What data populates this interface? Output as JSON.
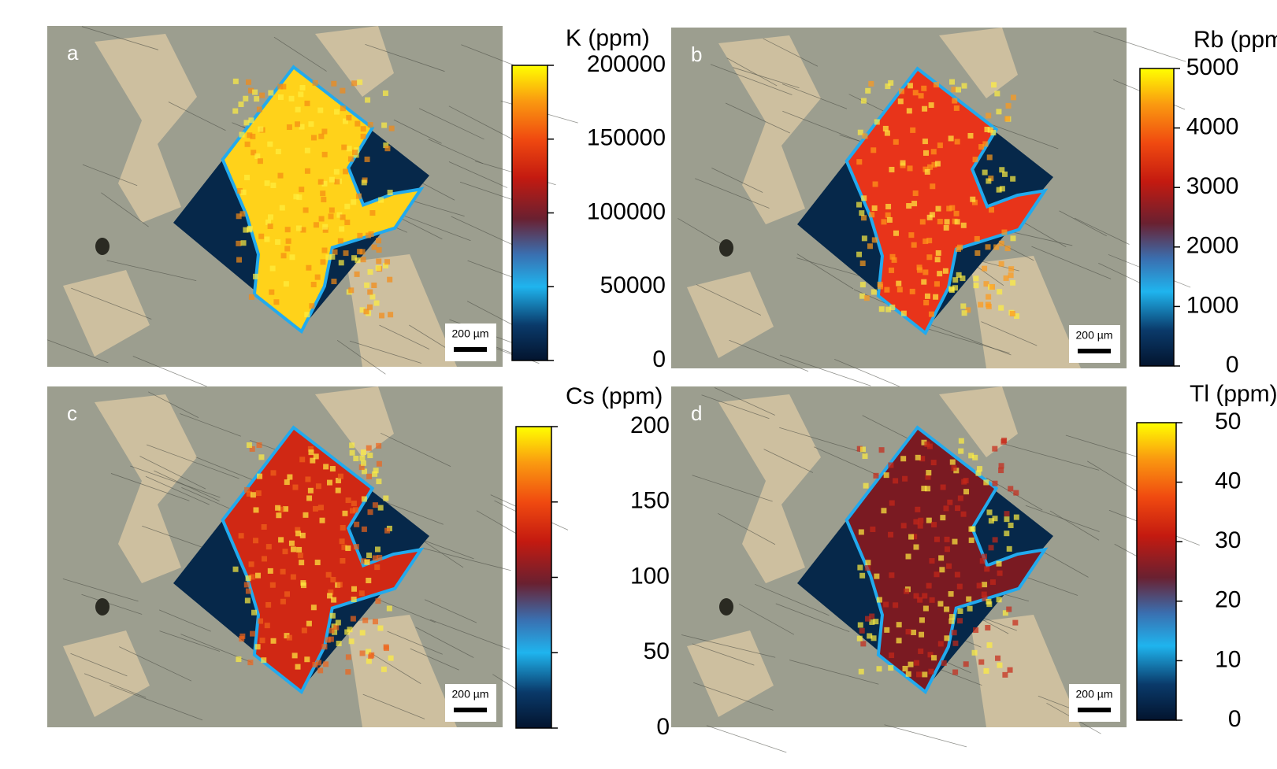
{
  "panels": [
    {
      "label": "a",
      "scale_bar": "200 µm",
      "colorbar": {
        "title": "K (ppm)",
        "lim": [
          0,
          200000
        ],
        "ticks": [
          0,
          50000,
          100000,
          150000,
          200000
        ]
      }
    },
    {
      "label": "b",
      "scale_bar": "200 µm",
      "colorbar": {
        "title": "Rb (ppm)",
        "lim": [
          0,
          5000
        ],
        "ticks": [
          0,
          1000,
          2000,
          3000,
          4000,
          5000
        ]
      }
    },
    {
      "label": "c",
      "scale_bar": "200 µm",
      "colorbar": {
        "title": "Cs (ppm)",
        "lim": [
          0,
          200
        ],
        "ticks": [
          0,
          50,
          100,
          150,
          200
        ]
      }
    },
    {
      "label": "d",
      "scale_bar": "200 µm",
      "colorbar": {
        "title": "Tl (ppm)",
        "lim": [
          0,
          50
        ],
        "ticks": [
          0,
          10,
          20,
          30,
          40,
          50
        ]
      }
    }
  ]
}
